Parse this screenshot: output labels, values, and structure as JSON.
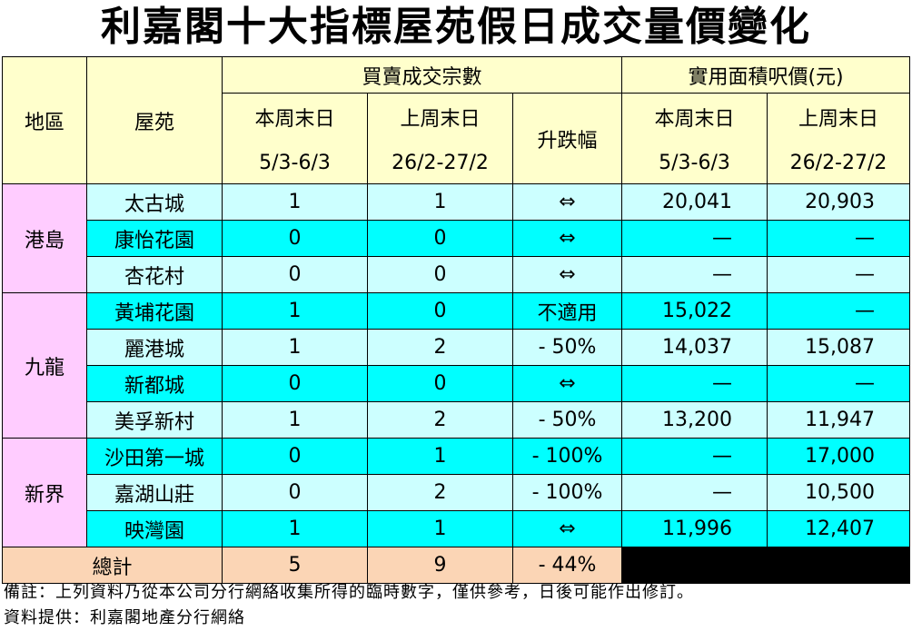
{
  "title": "利嘉閣十大指標屋苑假日成交量價變化",
  "header": {
    "region": "地區",
    "estate": "屋苑",
    "transactions_group": "買賣成交宗數",
    "price_group": "實用面積呎價(元)",
    "this_weekend": "本周末日",
    "this_dates": "5/3-6/3",
    "last_weekend": "上周末日",
    "last_dates": "26/2-27/2",
    "change": "升跌幅"
  },
  "regions": [
    {
      "name": "港島",
      "rows": [
        {
          "estate": "太古城",
          "this_count": "1",
          "last_count": "1",
          "change": "⇔",
          "this_price": "20,041",
          "last_price": "20,903"
        },
        {
          "estate": "康怡花園",
          "this_count": "0",
          "last_count": "0",
          "change": "⇔",
          "this_price": "—",
          "last_price": "—"
        },
        {
          "estate": "杏花村",
          "this_count": "0",
          "last_count": "0",
          "change": "⇔",
          "this_price": "—",
          "last_price": "—"
        }
      ]
    },
    {
      "name": "九龍",
      "rows": [
        {
          "estate": "黃埔花園",
          "this_count": "1",
          "last_count": "0",
          "change": "不適用",
          "this_price": "15,022",
          "last_price": "—"
        },
        {
          "estate": "麗港城",
          "this_count": "1",
          "last_count": "2",
          "change": "- 50%",
          "this_price": "14,037",
          "last_price": "15,087"
        },
        {
          "estate": "新都城",
          "this_count": "0",
          "last_count": "0",
          "change": "⇔",
          "this_price": "—",
          "last_price": "—"
        },
        {
          "estate": "美孚新村",
          "this_count": "1",
          "last_count": "2",
          "change": "- 50%",
          "this_price": "13,200",
          "last_price": "11,947"
        }
      ]
    },
    {
      "name": "新界",
      "rows": [
        {
          "estate": "沙田第一城",
          "this_count": "0",
          "last_count": "1",
          "change": "- 100%",
          "this_price": "—",
          "last_price": "17,000"
        },
        {
          "estate": "嘉湖山莊",
          "this_count": "0",
          "last_count": "2",
          "change": "- 100%",
          "this_price": "—",
          "last_price": "10,500"
        },
        {
          "estate": "映灣園",
          "this_count": "1",
          "last_count": "1",
          "change": "⇔",
          "this_price": "11,996",
          "last_price": "12,407"
        }
      ]
    }
  ],
  "total": {
    "label": "總計",
    "this_count": "5",
    "last_count": "9",
    "change": "- 44%"
  },
  "footer": {
    "note": "備註：上列資料乃從本公司分行網絡收集所得的臨時數字，僅供參考，日後可能作出修訂。",
    "source": "資料提供：利嘉閣地產分行網絡"
  },
  "colors": {
    "header_bg": "#ffffcc",
    "region_bg": "#ffccff",
    "row_light": "#ccffff",
    "row_dark": "#00ffff",
    "total_bg": "#fbd5b5"
  }
}
